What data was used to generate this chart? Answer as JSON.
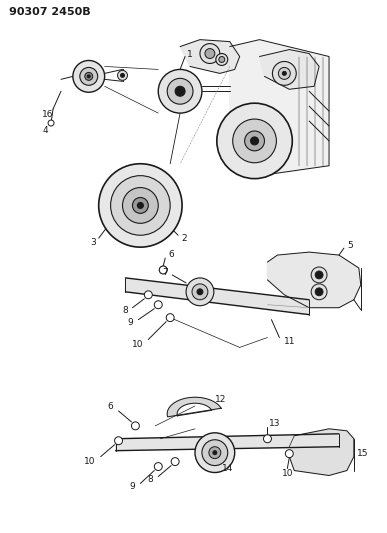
{
  "title": "90307 2450B",
  "bg_color": "#ffffff",
  "line_color": "#1a1a1a",
  "fig_width": 3.87,
  "fig_height": 5.33,
  "dpi": 100,
  "lw": 0.7
}
